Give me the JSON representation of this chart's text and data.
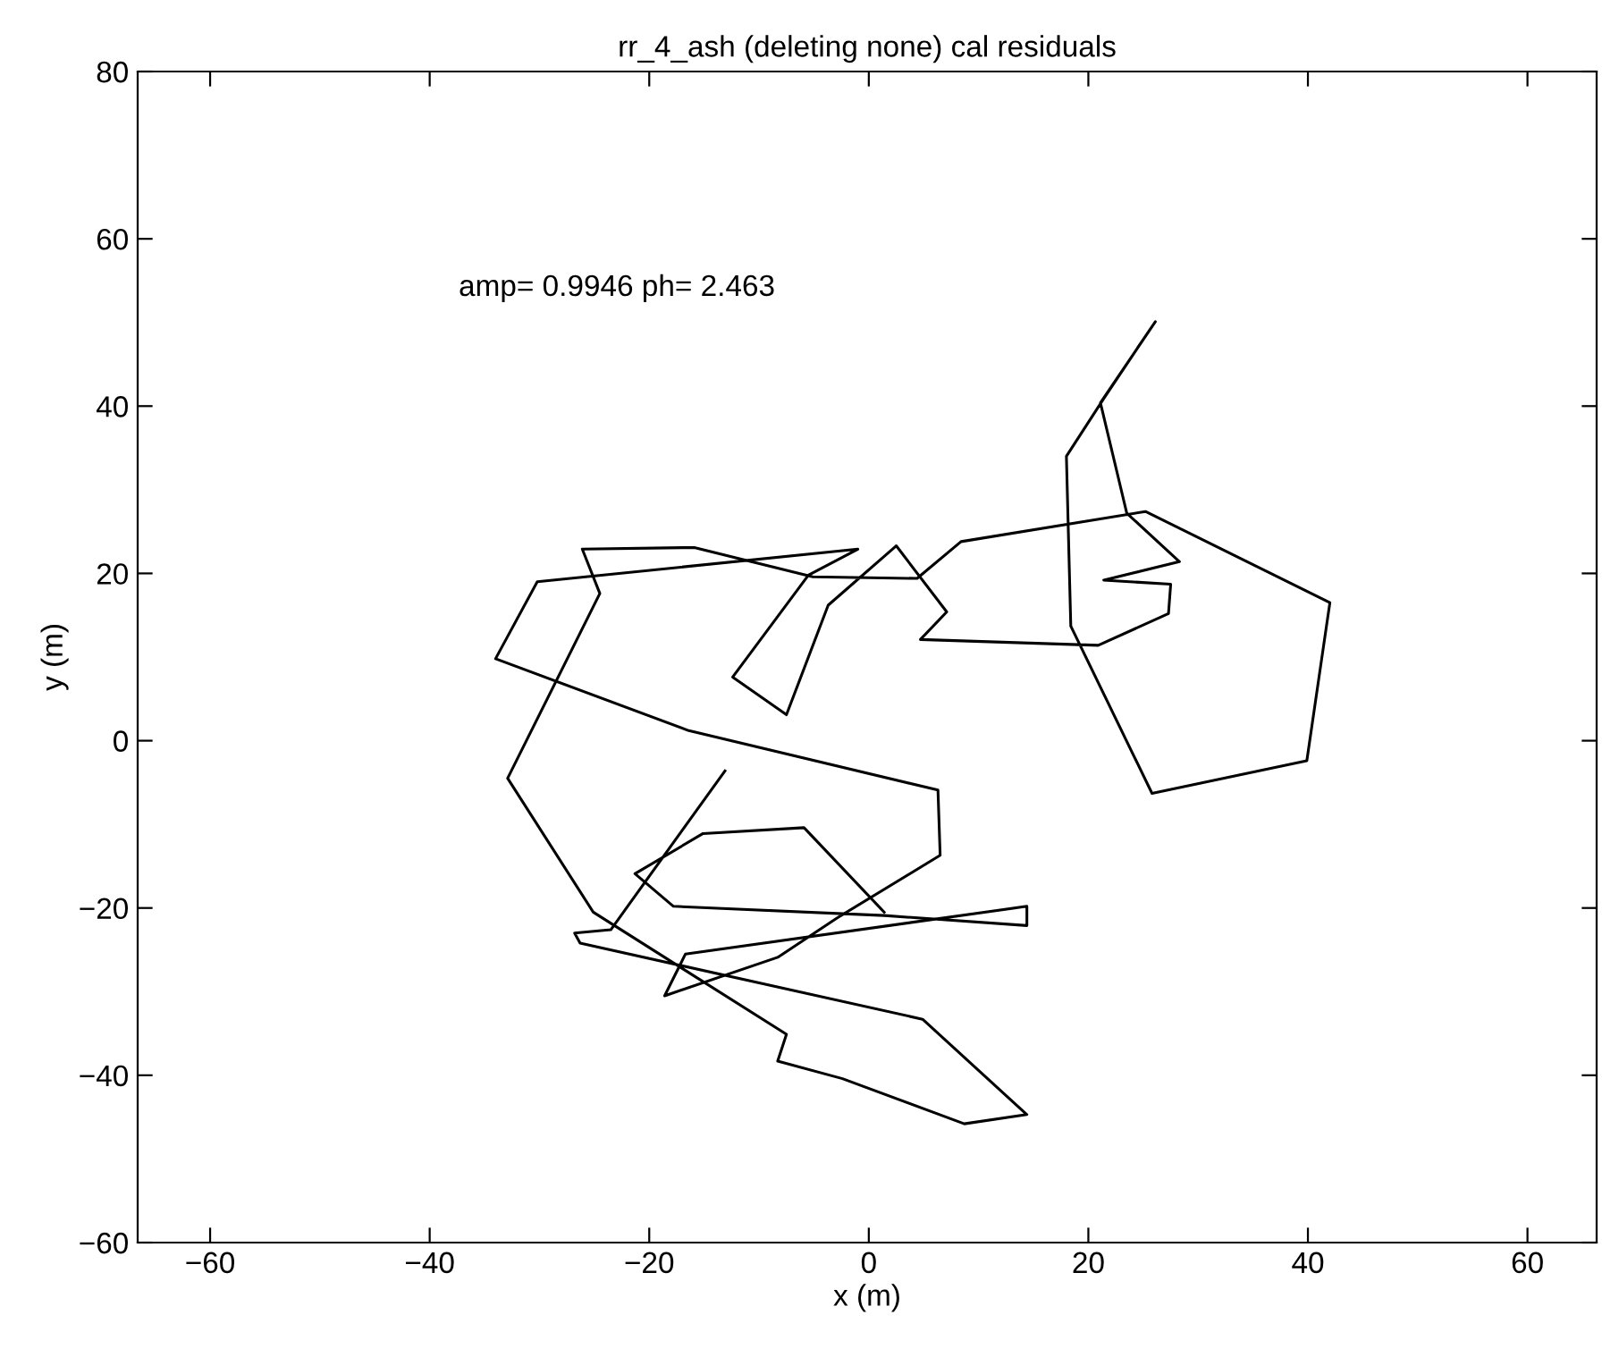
{
  "chart_data": {
    "type": "line",
    "title": "rr_4_ash (deleting none) cal residuals",
    "xlabel": "x (m)",
    "ylabel": "y (m)",
    "annotations": [
      "amp= 0.9946 ph= 2.463"
    ],
    "x": [
      -13.1,
      -23.5,
      -26.8,
      -26.3,
      4.9,
      14.4,
      8.7,
      -2.4,
      -8.3,
      -7.5,
      -25.1,
      -32.9,
      -24.5,
      -26.1,
      -15.9,
      -5.1,
      4.4,
      8.4,
      25.2,
      42.0,
      39.9,
      25.8,
      18.4,
      18.0,
      21.4,
      26.1,
      21.1,
      23.5,
      28.3,
      21.4,
      27.5,
      27.3,
      20.9,
      4.7,
      7.1,
      2.5,
      -3.7,
      -7.5,
      -12.4,
      -5.5,
      -1.0,
      -30.2,
      -34.0,
      -16.4,
      6.3,
      6.5,
      -2.9,
      -8.3,
      -18.6,
      -16.7,
      14.4,
      14.4,
      1.4,
      -17.8,
      -21.3,
      -15.1,
      -5.9,
      1.4
    ],
    "series": [
      {
        "color": "#000000",
        "values": [
          -3.6,
          -22.6,
          -23.0,
          -24.2,
          -33.3,
          -44.7,
          -45.8,
          -40.4,
          -38.3,
          -35.1,
          -20.5,
          -4.5,
          17.6,
          22.9,
          23.1,
          19.6,
          19.4,
          23.8,
          27.4,
          16.5,
          -2.4,
          -6.3,
          13.7,
          34.0,
          40.9,
          50.1,
          40.4,
          27.2,
          21.4,
          19.2,
          18.7,
          15.2,
          11.4,
          12.1,
          15.4,
          23.3,
          16.2,
          3.1,
          7.6,
          19.8,
          22.9,
          19.0,
          9.8,
          1.2,
          -5.9,
          -13.7,
          -21.2,
          -25.9,
          -30.5,
          -25.5,
          -19.8,
          -22.1,
          -20.9,
          -19.8,
          -15.9,
          -11.1,
          -10.4,
          -20.5
        ]
      }
    ],
    "xlim": [
      -66.6,
      66.3
    ],
    "xticks": [
      -60,
      -40,
      -20,
      0,
      20,
      40,
      60
    ],
    "ylim": [
      -60,
      80
    ],
    "yticks": [
      -60,
      -40,
      -20,
      0,
      20,
      40,
      60,
      80
    ],
    "grid": false,
    "legend": false,
    "marker": "none",
    "line_style": "solid"
  }
}
